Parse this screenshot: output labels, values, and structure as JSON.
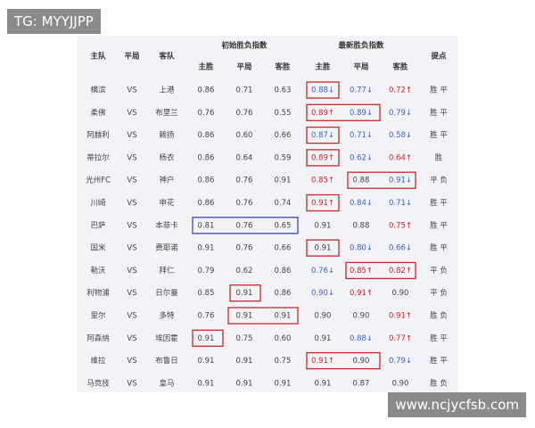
{
  "watermark_top": "TG: MYYJJPP",
  "watermark_bottom": "www.ncjycfsb.com",
  "header": {
    "home": "主队",
    "vs": "平局",
    "away": "客队",
    "initial": "初始胜负指数",
    "latest": "最新胜负指数",
    "tip": "提点",
    "initial_cols": [
      "主胜",
      "平局",
      "客胜"
    ],
    "latest_cols": [
      "主胜",
      "平局",
      "客胜"
    ]
  },
  "table": {
    "rows": [
      [
        "横滨",
        "VS",
        "上港",
        "0.86",
        "0.71",
        "0.63",
        "0.88↓",
        "0.77↓",
        "0.72↑",
        "胜 平"
      ],
      [
        "柔佛",
        "VS",
        "布里兰",
        "0.76",
        "0.76",
        "0.55",
        "0.89↑",
        "0.89↓",
        "0.79↓",
        "胜 平"
      ],
      [
        "阿赫利",
        "VS",
        "赖扬",
        "0.86",
        "0.60",
        "0.66",
        "0.87↓",
        "0.71↓",
        "0.58↓",
        "胜 平"
      ],
      [
        "蒂拉尔",
        "VS",
        "杨衣",
        "0.86",
        "0.64",
        "0.59",
        "0.89↑",
        "0.62↓",
        "0.64↑",
        "胜"
      ],
      [
        "光州FC",
        "VS",
        "神户",
        "0.86",
        "0.76",
        "0.91",
        "0.85↑",
        "0.88",
        "0.91↓",
        "平 负"
      ],
      [
        "川崎",
        "VS",
        "申花",
        "0.86",
        "0.76",
        "0.74",
        "0.91↑",
        "0.84↓",
        "0.71↓",
        "胜 平"
      ],
      [
        "巴萨",
        "VS",
        "本菲卡",
        "0.81",
        "0.76",
        "0.65",
        "0.91",
        "0.88",
        "0.75↑",
        "胜 平"
      ],
      [
        "国米",
        "VS",
        "费耶诺",
        "0.91",
        "0.76",
        "0.66",
        "0.91",
        "0.80↓",
        "0.66↓",
        "胜 平"
      ],
      [
        "勒沃",
        "VS",
        "拜仁",
        "0.79",
        "0.62",
        "0.86",
        "0.76↓",
        "0.85↑",
        "0.82↑",
        "平 负"
      ],
      [
        "利物浦",
        "VS",
        "日尔曼",
        "0.85",
        "0.91",
        "0.86",
        "0.90↓",
        "0.91↑",
        "0.90",
        "平 负"
      ],
      [
        "里尔",
        "VS",
        "多特",
        "0.76",
        "0.91",
        "0.91",
        "0.90",
        "0.90",
        "0.91↑",
        "胜 负"
      ],
      [
        "阿森纳",
        "VS",
        "埃因霍",
        "0.91",
        "0.75",
        "0.60",
        "0.91",
        "0.88↓",
        "0.77↑",
        "胜 平"
      ],
      [
        "维拉",
        "VS",
        "布鲁日",
        "0.91",
        "0.91",
        "0.75",
        "0.91↑",
        "0.90",
        "0.79↓",
        "胜 平"
      ],
      [
        "马竞技",
        "VS",
        "皇马",
        "0.91",
        "0.91",
        "0.91",
        "0.91",
        "0.87",
        "0.90",
        "胜 负"
      ]
    ]
  }
}
